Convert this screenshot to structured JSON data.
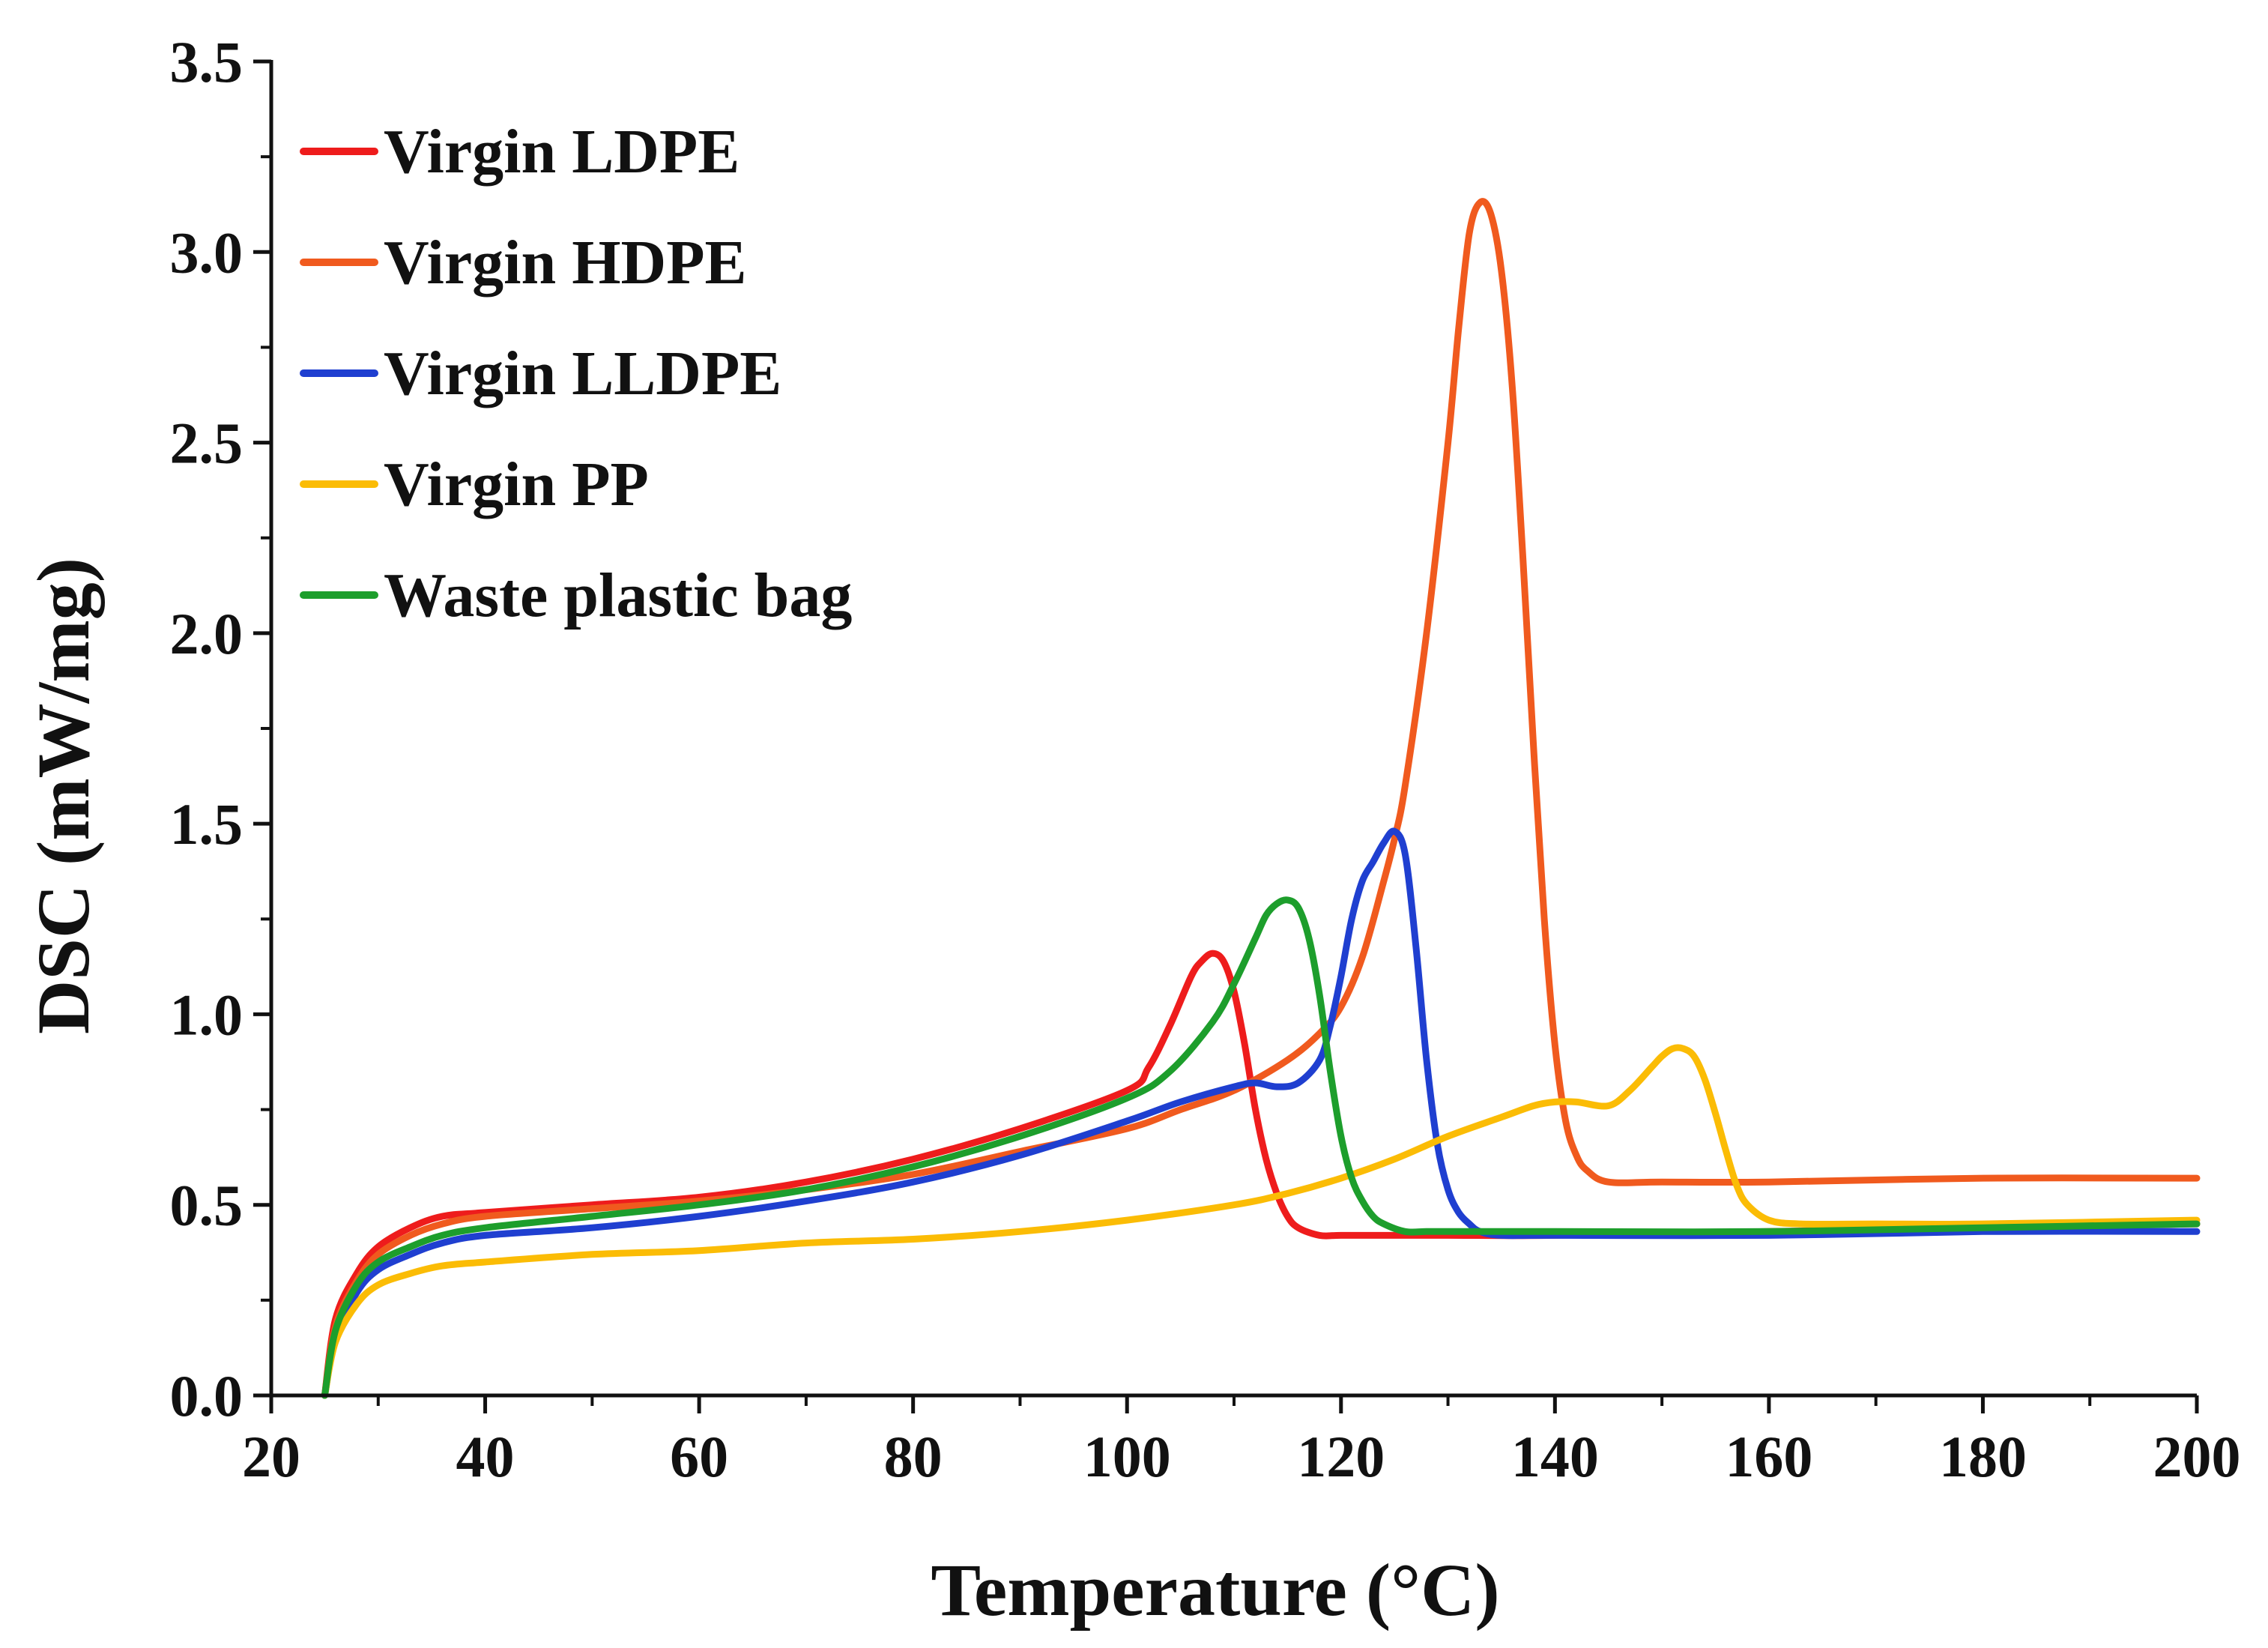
{
  "chart_data": {
    "type": "line",
    "title": "",
    "xlabel": "Temperature (°C)",
    "ylabel": "DSC (mW/mg)",
    "xlim": [
      20,
      200
    ],
    "ylim": [
      0,
      3.5
    ],
    "x_ticks": [
      20,
      40,
      60,
      80,
      100,
      120,
      140,
      160,
      180,
      200
    ],
    "x_tick_labels": [
      "20",
      "40",
      "60",
      "80",
      "100",
      "120",
      "140",
      "160",
      "180",
      "200"
    ],
    "y_ticks": [
      0,
      0.5,
      1.0,
      1.5,
      2.0,
      2.5,
      3.0,
      3.5
    ],
    "y_tick_labels": [
      "0.0",
      "0.5",
      "1.0",
      "1.5",
      "2.0",
      "2.5",
      "3.0",
      "3.5"
    ],
    "legend_position": "top-left",
    "grid": false,
    "series": [
      {
        "name": "Virgin LDPE",
        "color": "#ee1c1c",
        "x": [
          25,
          26,
          28,
          30,
          33,
          36,
          40,
          50,
          60,
          70,
          80,
          90,
          100,
          102,
          104,
          106,
          107,
          108,
          109,
          110,
          111,
          112,
          113,
          114,
          115,
          116,
          118,
          120,
          125,
          130,
          140,
          160,
          180,
          200
        ],
        "y": [
          0,
          0.2,
          0.32,
          0.39,
          0.44,
          0.47,
          0.48,
          0.5,
          0.52,
          0.56,
          0.62,
          0.7,
          0.8,
          0.86,
          0.97,
          1.1,
          1.14,
          1.16,
          1.14,
          1.06,
          0.92,
          0.75,
          0.62,
          0.53,
          0.47,
          0.44,
          0.42,
          0.42,
          0.42,
          0.42,
          0.42,
          0.43,
          0.44,
          0.45
        ]
      },
      {
        "name": "Virgin HDPE",
        "color": "#f05a1e",
        "x": [
          25,
          26,
          28,
          30,
          33,
          36,
          40,
          50,
          60,
          70,
          80,
          90,
          100,
          105,
          110,
          115,
          118,
          120,
          122,
          124,
          125,
          126,
          128,
          130,
          131,
          132,
          133,
          134,
          135,
          136,
          137,
          138,
          139,
          140,
          141,
          142,
          143,
          145,
          150,
          160,
          180,
          200
        ],
        "y": [
          0,
          0.18,
          0.3,
          0.37,
          0.42,
          0.45,
          0.47,
          0.49,
          0.51,
          0.54,
          0.58,
          0.64,
          0.7,
          0.75,
          0.8,
          0.88,
          0.95,
          1.02,
          1.15,
          1.35,
          1.46,
          1.6,
          2.0,
          2.5,
          2.8,
          3.05,
          3.13,
          3.1,
          2.95,
          2.65,
          2.2,
          1.7,
          1.25,
          0.92,
          0.72,
          0.63,
          0.59,
          0.56,
          0.56,
          0.56,
          0.57,
          0.57
        ]
      },
      {
        "name": "Virgin LLDPE",
        "color": "#1f3fd0",
        "x": [
          25,
          26,
          28,
          30,
          33,
          36,
          40,
          50,
          60,
          70,
          80,
          90,
          100,
          105,
          110,
          112,
          114,
          116,
          118,
          119,
          120,
          121,
          122,
          123,
          124,
          125,
          126,
          127,
          128,
          129,
          130,
          131,
          132,
          133,
          135,
          140,
          160,
          180,
          200
        ],
        "y": [
          0,
          0.15,
          0.27,
          0.33,
          0.37,
          0.4,
          0.42,
          0.44,
          0.47,
          0.51,
          0.56,
          0.63,
          0.72,
          0.77,
          0.81,
          0.82,
          0.81,
          0.82,
          0.88,
          0.97,
          1.1,
          1.25,
          1.35,
          1.4,
          1.45,
          1.48,
          1.42,
          1.18,
          0.88,
          0.66,
          0.54,
          0.48,
          0.45,
          0.43,
          0.42,
          0.42,
          0.42,
          0.43,
          0.43
        ]
      },
      {
        "name": "Virgin PP",
        "color": "#fbbc05",
        "x": [
          25,
          26,
          28,
          30,
          33,
          36,
          40,
          50,
          60,
          70,
          80,
          90,
          100,
          110,
          115,
          120,
          125,
          130,
          135,
          138,
          140,
          142,
          145,
          147,
          149,
          150,
          151,
          152,
          153,
          154,
          155,
          156,
          157,
          158,
          160,
          163,
          170,
          180,
          200
        ],
        "y": [
          0,
          0.14,
          0.24,
          0.29,
          0.32,
          0.34,
          0.35,
          0.37,
          0.38,
          0.4,
          0.41,
          0.43,
          0.46,
          0.5,
          0.53,
          0.57,
          0.62,
          0.68,
          0.73,
          0.76,
          0.77,
          0.77,
          0.76,
          0.8,
          0.86,
          0.89,
          0.91,
          0.91,
          0.89,
          0.83,
          0.74,
          0.64,
          0.55,
          0.5,
          0.46,
          0.45,
          0.45,
          0.45,
          0.46
        ]
      },
      {
        "name": "Waste plastic bag",
        "color": "#1d9e2c",
        "x": [
          25,
          26,
          28,
          30,
          33,
          36,
          40,
          50,
          60,
          70,
          80,
          90,
          100,
          104,
          108,
          110,
          112,
          113,
          114,
          115,
          116,
          117,
          118,
          119,
          120,
          121,
          122,
          123,
          124,
          126,
          128,
          130,
          140,
          160,
          180,
          200
        ],
        "y": [
          0,
          0.17,
          0.29,
          0.35,
          0.39,
          0.42,
          0.44,
          0.47,
          0.5,
          0.54,
          0.6,
          0.68,
          0.78,
          0.85,
          0.98,
          1.08,
          1.2,
          1.26,
          1.29,
          1.3,
          1.28,
          1.2,
          1.05,
          0.85,
          0.68,
          0.57,
          0.51,
          0.47,
          0.45,
          0.43,
          0.43,
          0.43,
          0.43,
          0.43,
          0.44,
          0.45
        ]
      }
    ]
  }
}
